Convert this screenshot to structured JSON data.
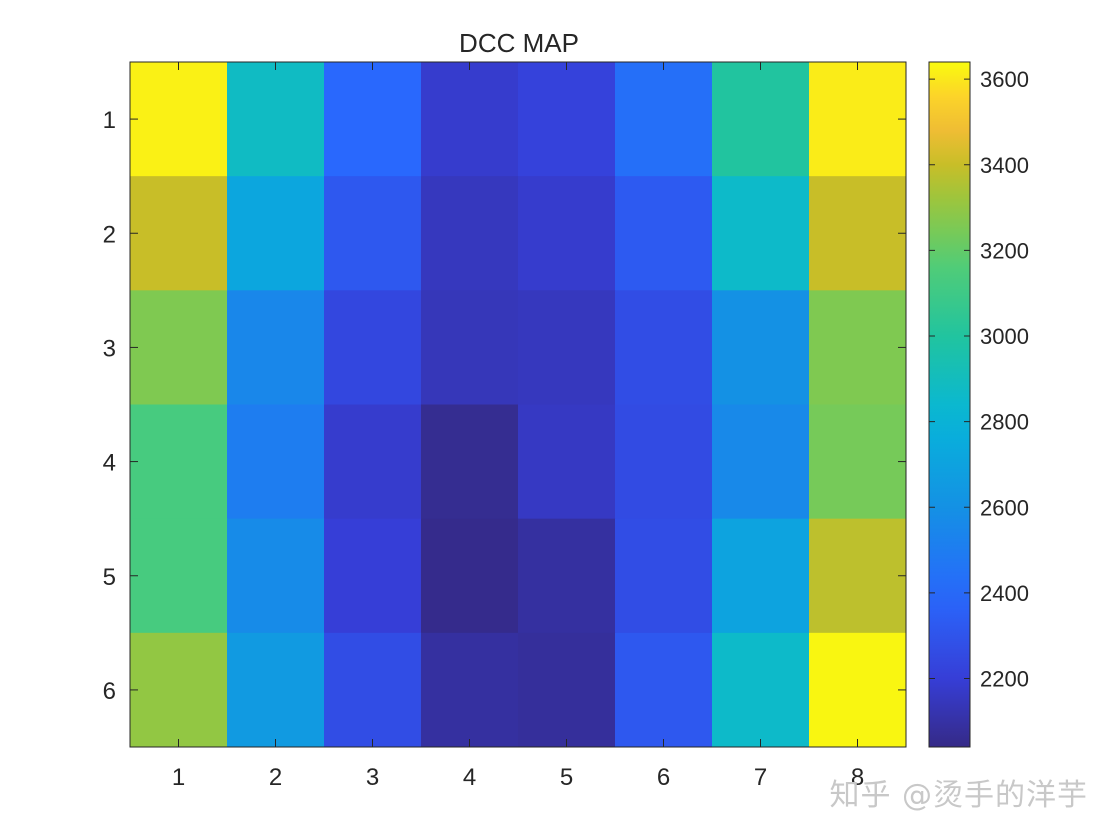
{
  "chart_data": {
    "type": "heatmap",
    "title": "DCC MAP",
    "xlabel": "",
    "ylabel": "",
    "x_ticks": [
      "1",
      "2",
      "3",
      "4",
      "5",
      "6",
      "7",
      "8"
    ],
    "y_ticks": [
      "1",
      "2",
      "3",
      "4",
      "5",
      "6"
    ],
    "values": [
      [
        3620,
        2880,
        2390,
        2180,
        2220,
        2430,
        3000,
        3610
      ],
      [
        3400,
        2720,
        2320,
        2150,
        2180,
        2330,
        2860,
        3400
      ],
      [
        3260,
        2550,
        2240,
        2140,
        2150,
        2270,
        2600,
        3260
      ],
      [
        3130,
        2500,
        2180,
        2060,
        2160,
        2260,
        2560,
        3240
      ],
      [
        3130,
        2570,
        2200,
        2050,
        2090,
        2270,
        2700,
        3380
      ],
      [
        3300,
        2650,
        2270,
        2090,
        2080,
        2320,
        2860,
        3630
      ]
    ],
    "colormap": "parula",
    "clim": [
      2040,
      3640
    ],
    "colorbar_ticks": [
      2200,
      2400,
      2600,
      2800,
      3000,
      3200,
      3400,
      3600
    ]
  },
  "watermark": "知乎 @烫手的洋芋"
}
